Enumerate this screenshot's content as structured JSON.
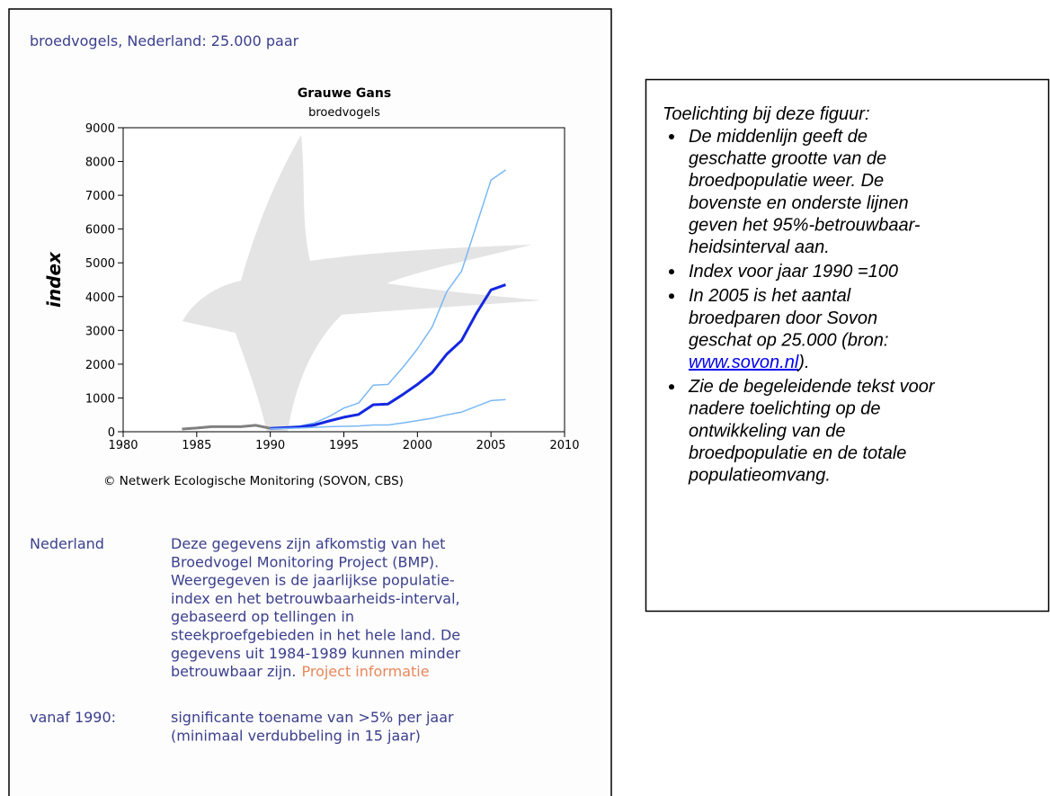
{
  "header": {
    "title": "broedvogels, Nederland: 25.000 paar"
  },
  "chart_data": {
    "type": "line",
    "title": "Grauwe Gans",
    "subtitle": "broedvogels",
    "y_label": "index",
    "source": "© Netwerk Ecologische Monitoring (SOVON, CBS)",
    "x": [
      1984,
      1985,
      1986,
      1987,
      1988,
      1989,
      1990,
      1991,
      1992,
      1993,
      1994,
      1995,
      1996,
      1997,
      1998,
      1999,
      2000,
      2001,
      2002,
      2003,
      2004,
      2005,
      2006
    ],
    "series": [
      {
        "color": "#808080",
        "width": 3,
        "values": [
          80,
          110,
          150,
          150,
          150,
          190,
          100,
          null,
          null,
          null,
          null,
          null,
          null,
          null,
          null,
          null,
          null,
          null,
          null,
          null,
          null,
          null,
          null
        ]
      },
      {
        "color": "#7ab8f5",
        "width": 1.5,
        "values": [
          null,
          null,
          null,
          null,
          null,
          null,
          110,
          140,
          170,
          260,
          450,
          700,
          850,
          1380,
          1400,
          1900,
          2450,
          3100,
          4150,
          4750,
          6100,
          7450,
          7750
        ]
      },
      {
        "color": "#1428e0",
        "width": 3,
        "values": [
          null,
          null,
          null,
          null,
          null,
          null,
          100,
          120,
          140,
          200,
          320,
          430,
          510,
          800,
          820,
          1100,
          1400,
          1750,
          2300,
          2700,
          3500,
          4200,
          4350
        ]
      },
      {
        "color": "#7ab8f5",
        "width": 1.5,
        "values": [
          null,
          null,
          null,
          null,
          null,
          null,
          90,
          100,
          110,
          130,
          150,
          160,
          170,
          200,
          200,
          260,
          330,
          400,
          500,
          580,
          750,
          920,
          950
        ]
      }
    ],
    "xlim": [
      1980,
      2010
    ],
    "xticks": [
      1980,
      1985,
      1990,
      1995,
      2000,
      2005,
      2010
    ],
    "ylim": [
      0,
      9000
    ],
    "yticks": [
      0,
      1000,
      2000,
      3000,
      4000,
      5000,
      6000,
      7000,
      8000,
      9000
    ]
  },
  "source_info": {
    "label": "Nederland",
    "lines": [
      "Deze gegevens zijn afkomstig van het",
      "Broedvogel Monitoring Project (BMP).",
      "Weergegeven is de jaarlijkse populatie-",
      "index en het betrouwbaarheids-interval,",
      "gebaseerd op tellingen in",
      "steekproefgebieden in het hele land. De",
      "gegevens uit 1984-1989 kunnen minder",
      "betrouwbaar zijn."
    ],
    "link": "Project informatie"
  },
  "trend": {
    "label": "vanaf 1990:",
    "lines": [
      "significante toename van >5% per jaar",
      "(minimaal verdubbeling in 15 jaar)"
    ]
  },
  "notes": {
    "title": "Toelichting bij deze figuur:",
    "bullets": [
      {
        "lines": [
          "De middenlijn geeft de",
          "geschatte grootte van de",
          "broedpopulatie weer. De",
          "bovenste en onderste lijnen",
          "geven het 95%-betrouwbaar-",
          "heidsinterval aan."
        ]
      },
      {
        "lines": [
          "Index voor jaar 1990 =100"
        ]
      },
      {
        "lines": [
          "In 2005 is het aantal",
          "broedparen door Sovon",
          "geschat op 25.000 (bron:"
        ],
        "link": "www.sovon.nl",
        "tail": ")."
      },
      {
        "lines": [
          "Zie de begeleidende tekst voor",
          "nadere toelichting op de",
          "ontwikkeling van de",
          "broedpopulatie en de totale",
          "populatieomvang."
        ]
      }
    ]
  }
}
